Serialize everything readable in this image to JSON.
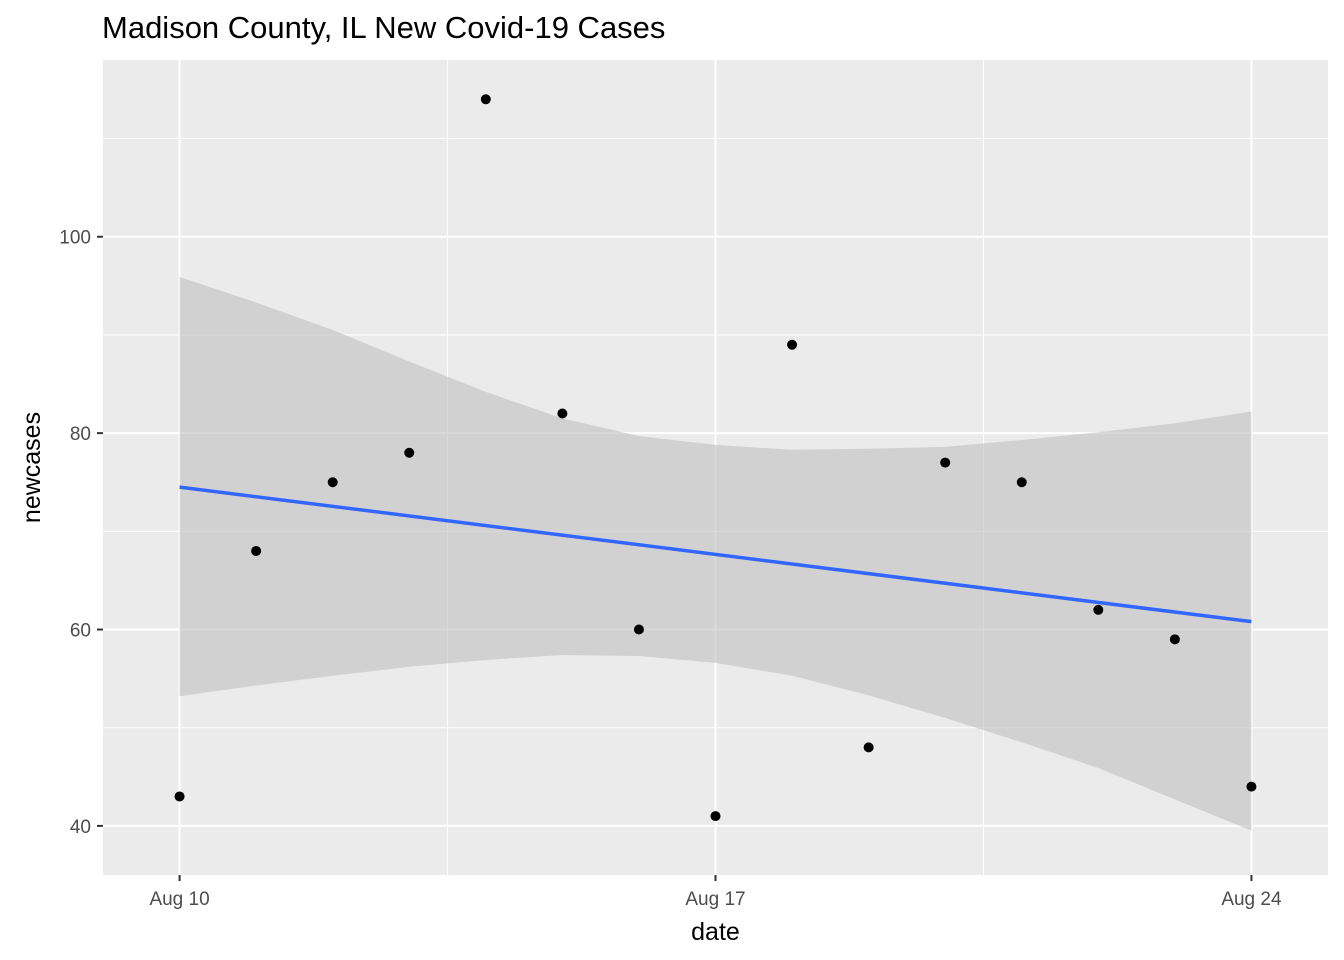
{
  "chart_data": {
    "type": "scatter",
    "title": "Madison County, IL New Covid-19 Cases",
    "xlabel": "date",
    "ylabel": "newcases",
    "x_ticks": [
      {
        "date": "2020-08-10",
        "label": "Aug 10"
      },
      {
        "date": "2020-08-17",
        "label": "Aug 17"
      },
      {
        "date": "2020-08-24",
        "label": "Aug 24"
      }
    ],
    "y_ticks": [
      40,
      60,
      80,
      100
    ],
    "xlim": [
      "2020-08-09",
      "2020-08-25"
    ],
    "ylim": [
      35,
      118
    ],
    "grid": true,
    "points": [
      {
        "date": "2020-08-10",
        "value": 43
      },
      {
        "date": "2020-08-11",
        "value": 68
      },
      {
        "date": "2020-08-12",
        "value": 75
      },
      {
        "date": "2020-08-13",
        "value": 78
      },
      {
        "date": "2020-08-14",
        "value": 114
      },
      {
        "date": "2020-08-15",
        "value": 82
      },
      {
        "date": "2020-08-16",
        "value": 60
      },
      {
        "date": "2020-08-17",
        "value": 41
      },
      {
        "date": "2020-08-18",
        "value": 89
      },
      {
        "date": "2020-08-19",
        "value": 48
      },
      {
        "date": "2020-08-20",
        "value": 77
      },
      {
        "date": "2020-08-21",
        "value": 75
      },
      {
        "date": "2020-08-22",
        "value": 62
      },
      {
        "date": "2020-08-23",
        "value": 59
      },
      {
        "date": "2020-08-24",
        "value": 44
      }
    ],
    "trend": {
      "method": "linear",
      "start": {
        "date": "2020-08-10",
        "value": 74.5
      },
      "end": {
        "date": "2020-08-24",
        "value": 60.8
      },
      "color": "#3366ff",
      "confidence_band": [
        {
          "date": "2020-08-10",
          "lower": 53.2,
          "upper": 95.9
        },
        {
          "date": "2020-08-11",
          "lower": 54.3,
          "upper": 93.3
        },
        {
          "date": "2020-08-12",
          "lower": 55.3,
          "upper": 90.5
        },
        {
          "date": "2020-08-13",
          "lower": 56.2,
          "upper": 87.3
        },
        {
          "date": "2020-08-14",
          "lower": 56.9,
          "upper": 84.2
        },
        {
          "date": "2020-08-15",
          "lower": 57.4,
          "upper": 81.5
        },
        {
          "date": "2020-08-16",
          "lower": 57.3,
          "upper": 79.7
        },
        {
          "date": "2020-08-17",
          "lower": 56.6,
          "upper": 78.8
        },
        {
          "date": "2020-08-18",
          "lower": 55.3,
          "upper": 78.3
        },
        {
          "date": "2020-08-19",
          "lower": 53.3,
          "upper": 78.4
        },
        {
          "date": "2020-08-20",
          "lower": 51.0,
          "upper": 78.6
        },
        {
          "date": "2020-08-21",
          "lower": 48.5,
          "upper": 79.3
        },
        {
          "date": "2020-08-22",
          "lower": 45.9,
          "upper": 80.1
        },
        {
          "date": "2020-08-23",
          "lower": 42.7,
          "upper": 81.0
        },
        {
          "date": "2020-08-24",
          "lower": 39.5,
          "upper": 82.2
        }
      ]
    },
    "colors": {
      "panel": "#ebebeb",
      "grid": "#ffffff",
      "point": "#000000",
      "band": "#bfbfbf",
      "line": "#3366ff",
      "tick_text": "#4d4d4d"
    }
  }
}
